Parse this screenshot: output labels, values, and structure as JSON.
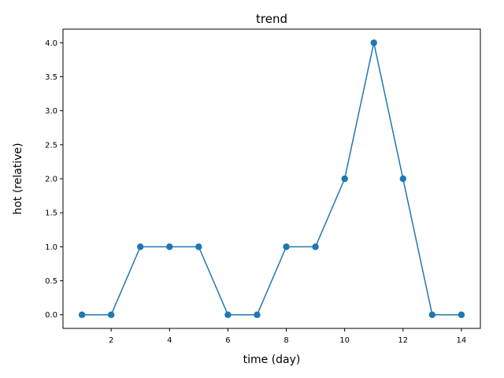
{
  "chart_data": {
    "type": "line",
    "title": "trend",
    "xlabel": "time (day)",
    "ylabel": "hot (relative)",
    "x": [
      1,
      2,
      3,
      4,
      5,
      6,
      7,
      8,
      9,
      10,
      11,
      12,
      13,
      14
    ],
    "series": [
      {
        "values": [
          0,
          0,
          1,
          1,
          1,
          0,
          0,
          1,
          1,
          2,
          4,
          2,
          0,
          0
        ]
      }
    ],
    "xlim": [
      0.35,
      14.65
    ],
    "ylim": [
      -0.2,
      4.2
    ],
    "xticks": [
      2,
      4,
      6,
      8,
      10,
      12,
      14
    ],
    "xtick_labels": [
      "2",
      "4",
      "6",
      "8",
      "10",
      "12",
      "14"
    ],
    "yticks": [
      0,
      0.5,
      1,
      1.5,
      2,
      2.5,
      3,
      3.5,
      4
    ],
    "ytick_labels": [
      "0.0",
      "0.5",
      "1.0",
      "1.5",
      "2.0",
      "2.5",
      "3.0",
      "3.5",
      "4.0"
    ],
    "grid": false,
    "legend": "none",
    "line_color": "#1f77b4",
    "marker": "circle"
  }
}
